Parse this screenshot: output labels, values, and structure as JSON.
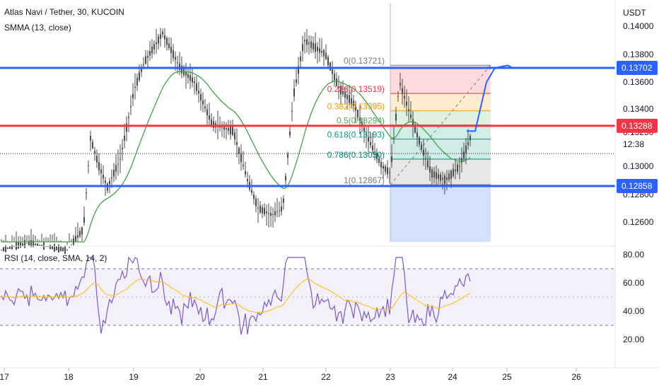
{
  "header": {
    "symbol_title": "Atlas Navi / Tether, 30, KUCOIN",
    "indicator": "SMMA (13, close)"
  },
  "rsi_panel": {
    "title": "RSI (14, close, SMA, 14, 2)",
    "levels": [
      "80.00",
      "60.00",
      "40.00",
      "20.00"
    ],
    "upper_band": 70,
    "lower_band": 30
  },
  "price_axis": {
    "currency": "USDT",
    "ticks": [
      "0.14000",
      "0.13800",
      "0.13600",
      "0.13400",
      "0.13250",
      "0.13000",
      "0.12800",
      "0.12600"
    ],
    "countdown": "12:38"
  },
  "badges": [
    {
      "text": "0.13702",
      "color": "#2962ff"
    },
    {
      "text": "0.13288",
      "color": "#f23645"
    },
    {
      "text": "0.12858",
      "color": "#2962ff"
    }
  ],
  "x_axis": {
    "ticks": [
      "17",
      "18",
      "19",
      "20",
      "21",
      "22",
      "23",
      "24",
      "25",
      "26"
    ]
  },
  "fib": {
    "labels": [
      "0(0.13721)",
      "0.236(0.13519)",
      "0.382(0.13395)",
      "0.5(0.13294)",
      "0.618(0.13193)",
      "0.786(0.13050)",
      "1(0.12867)"
    ],
    "levels": [
      0.13721,
      0.13519,
      0.13395,
      0.13294,
      0.13193,
      0.1305,
      0.12867
    ],
    "colors": [
      "#787b86",
      "#f23645",
      "#ff9800",
      "#4caf50",
      "#089981",
      "#00897b",
      "#787b86"
    ]
  },
  "colors": {
    "candles": "#4a4a4a",
    "smma": "#43a047",
    "rsi_line": "#7e57c2",
    "rsi_ma": "#fbc02d",
    "support_line": "#2962ff",
    "resistance_line": "#f23645",
    "projection": "#2962ff"
  },
  "chart_data": {
    "type": "candlestick",
    "title": "Atlas Navi / Tether, 30, KUCOIN",
    "y_unit": "USDT",
    "x_dates": [
      "17",
      "18",
      "19",
      "20",
      "21",
      "22",
      "23",
      "24",
      "25",
      "26"
    ],
    "horizontal_levels": [
      0.13702,
      0.13288,
      0.12858
    ],
    "fib_retracement": {
      "start": 0.13721,
      "end": 0.12867
    },
    "projection_path": [
      0.1325,
      0.136,
      0.13702,
      0.1372
    ],
    "smma_period": 13,
    "rsi_period": 14
  }
}
